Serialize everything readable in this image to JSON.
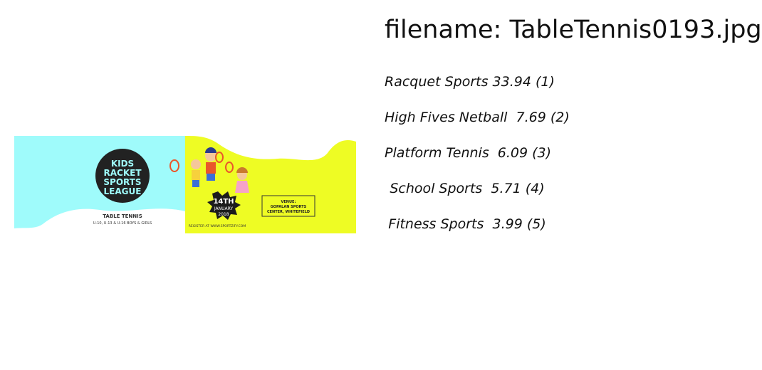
{
  "title": "filename: TableTennis0193.jpg",
  "predictions": [
    "Racquet Sports 33.94 (1)",
    "High Fives Netball  7.69 (2)",
    "Platform Tennis  6.09 (3)",
    "School Sports  5.71 (4)",
    "Fitness Sports  3.99 (5)"
  ],
  "banner": {
    "logo": [
      "KIDS",
      "RACKET",
      "SPORTS",
      "LEAGUE"
    ],
    "event": "TABLE TENNIS",
    "groups": "U-10, U-13 & U-16 BOYS & GIRLS",
    "date": [
      "14TH",
      "JANUARY",
      "2018"
    ],
    "venue": [
      "VENUE:",
      "GOPALAN SPORTS",
      "CENTER, WHITEFIELD"
    ],
    "register": "REGISTER AT WWW.SPORTZIFY.COM"
  }
}
